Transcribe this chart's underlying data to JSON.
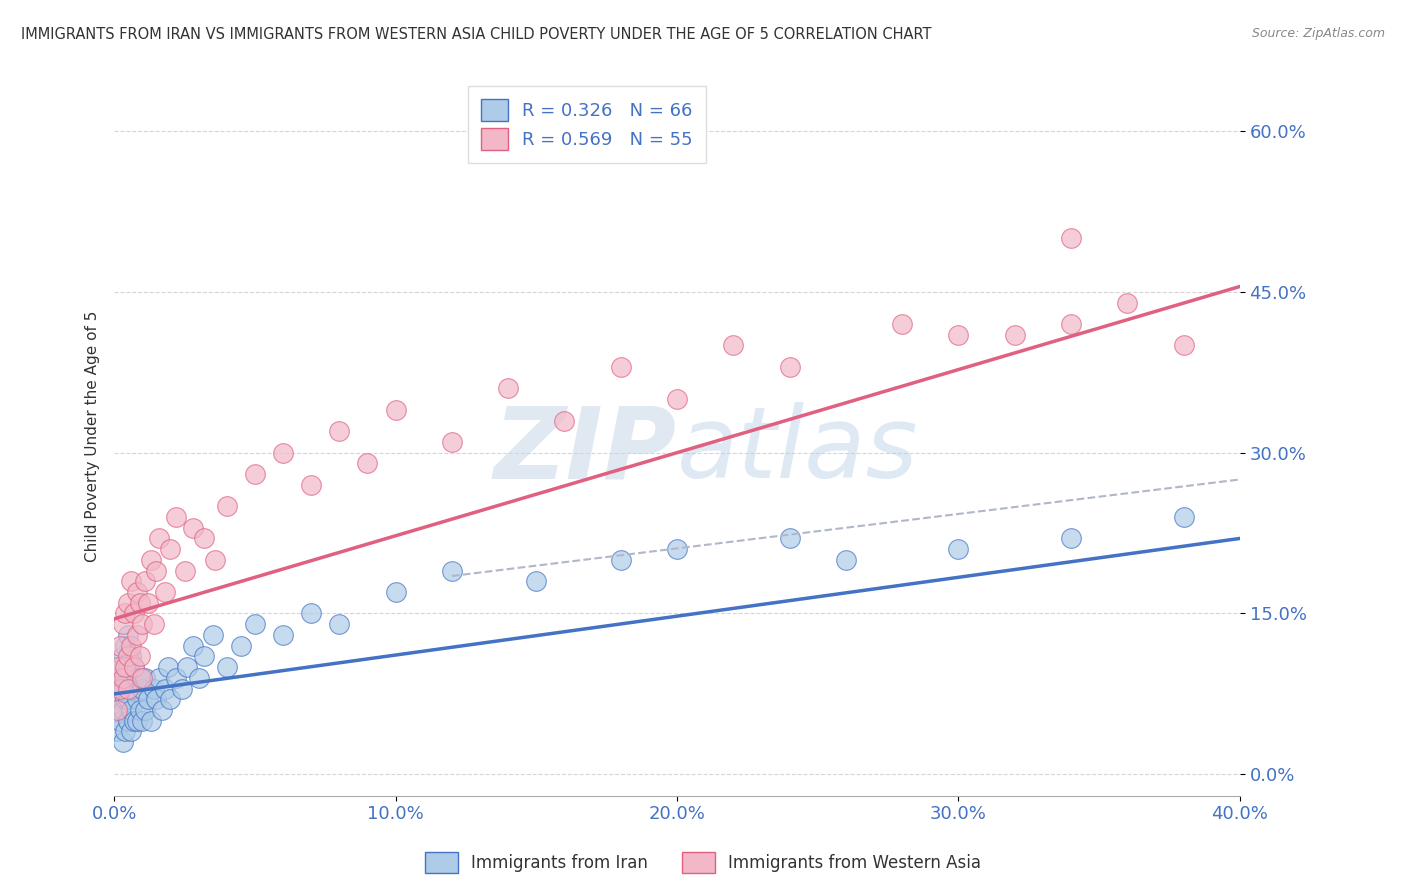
{
  "title": "IMMIGRANTS FROM IRAN VS IMMIGRANTS FROM WESTERN ASIA CHILD POVERTY UNDER THE AGE OF 5 CORRELATION CHART",
  "source": "Source: ZipAtlas.com",
  "xlabel_iran": "Immigrants from Iran",
  "xlabel_western": "Immigrants from Western Asia",
  "ylabel": "Child Poverty Under the Age of 5",
  "xlim": [
    0.0,
    0.4
  ],
  "ylim": [
    -0.02,
    0.65
  ],
  "yticks": [
    0.0,
    0.15,
    0.3,
    0.45,
    0.6
  ],
  "xticks": [
    0.0,
    0.1,
    0.2,
    0.3,
    0.4
  ],
  "legend_iran_R": "0.326",
  "legend_iran_N": "66",
  "legend_western_R": "0.569",
  "legend_western_N": "55",
  "color_iran": "#aecce8",
  "color_western": "#f2b8c8",
  "color_line_iran": "#4472c4",
  "color_line_western": "#e06080",
  "color_dashed": "#b0b8c8",
  "watermark_color": "#c8d8e8",
  "iran_x": [
    0.001,
    0.001,
    0.001,
    0.002,
    0.002,
    0.002,
    0.003,
    0.003,
    0.003,
    0.003,
    0.004,
    0.004,
    0.004,
    0.004,
    0.005,
    0.005,
    0.005,
    0.005,
    0.006,
    0.006,
    0.006,
    0.006,
    0.007,
    0.007,
    0.007,
    0.008,
    0.008,
    0.008,
    0.009,
    0.009,
    0.01,
    0.01,
    0.011,
    0.011,
    0.012,
    0.013,
    0.014,
    0.015,
    0.016,
    0.017,
    0.018,
    0.019,
    0.02,
    0.022,
    0.024,
    0.026,
    0.028,
    0.03,
    0.032,
    0.035,
    0.04,
    0.045,
    0.05,
    0.06,
    0.07,
    0.08,
    0.1,
    0.12,
    0.15,
    0.18,
    0.2,
    0.24,
    0.26,
    0.3,
    0.34,
    0.38
  ],
  "iran_y": [
    0.04,
    0.06,
    0.09,
    0.05,
    0.07,
    0.1,
    0.03,
    0.06,
    0.08,
    0.11,
    0.04,
    0.07,
    0.09,
    0.12,
    0.05,
    0.07,
    0.1,
    0.13,
    0.04,
    0.06,
    0.08,
    0.11,
    0.05,
    0.08,
    0.1,
    0.05,
    0.07,
    0.09,
    0.06,
    0.09,
    0.05,
    0.08,
    0.06,
    0.09,
    0.07,
    0.05,
    0.08,
    0.07,
    0.09,
    0.06,
    0.08,
    0.1,
    0.07,
    0.09,
    0.08,
    0.1,
    0.12,
    0.09,
    0.11,
    0.13,
    0.1,
    0.12,
    0.14,
    0.13,
    0.15,
    0.14,
    0.17,
    0.19,
    0.18,
    0.2,
    0.21,
    0.22,
    0.2,
    0.21,
    0.22,
    0.24
  ],
  "western_x": [
    0.001,
    0.001,
    0.002,
    0.002,
    0.003,
    0.003,
    0.004,
    0.004,
    0.005,
    0.005,
    0.005,
    0.006,
    0.006,
    0.007,
    0.007,
    0.008,
    0.008,
    0.009,
    0.009,
    0.01,
    0.01,
    0.011,
    0.012,
    0.013,
    0.014,
    0.015,
    0.016,
    0.018,
    0.02,
    0.022,
    0.025,
    0.028,
    0.032,
    0.036,
    0.04,
    0.05,
    0.06,
    0.07,
    0.08,
    0.09,
    0.1,
    0.12,
    0.14,
    0.16,
    0.18,
    0.2,
    0.22,
    0.24,
    0.28,
    0.32,
    0.34,
    0.36,
    0.38,
    0.34,
    0.3
  ],
  "western_y": [
    0.06,
    0.1,
    0.08,
    0.12,
    0.09,
    0.14,
    0.1,
    0.15,
    0.08,
    0.11,
    0.16,
    0.12,
    0.18,
    0.1,
    0.15,
    0.13,
    0.17,
    0.11,
    0.16,
    0.09,
    0.14,
    0.18,
    0.16,
    0.2,
    0.14,
    0.19,
    0.22,
    0.17,
    0.21,
    0.24,
    0.19,
    0.23,
    0.22,
    0.2,
    0.25,
    0.28,
    0.3,
    0.27,
    0.32,
    0.29,
    0.34,
    0.31,
    0.36,
    0.33,
    0.38,
    0.35,
    0.4,
    0.38,
    0.42,
    0.41,
    0.42,
    0.44,
    0.4,
    0.5,
    0.41
  ],
  "iran_line_x0": 0.0,
  "iran_line_y0": 0.075,
  "iran_line_x1": 0.4,
  "iran_line_y1": 0.22,
  "western_line_x0": 0.0,
  "western_line_y0": 0.145,
  "western_line_x1": 0.4,
  "western_line_y1": 0.455,
  "dash_line_x0": 0.12,
  "dash_line_y0": 0.185,
  "dash_line_x1": 0.4,
  "dash_line_y1": 0.275
}
